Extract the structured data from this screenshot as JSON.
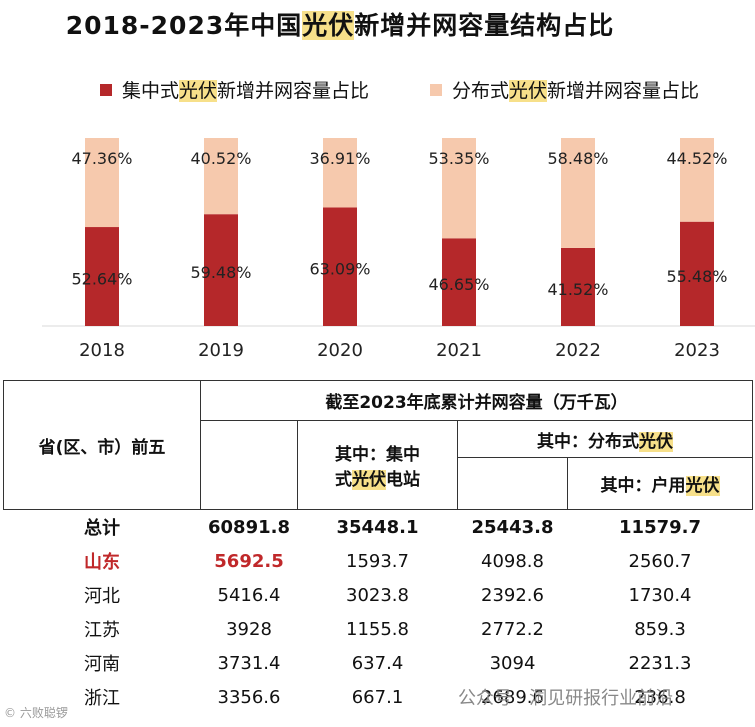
{
  "title": {
    "pre": "2018-2023年中国",
    "hl": "光伏",
    "post": "新增并网容量结构占比"
  },
  "legend": [
    {
      "pre": "集中式",
      "hl": "光伏",
      "post": "新增并网容量占比",
      "color": "#b5282a"
    },
    {
      "pre": "分布式",
      "hl": "光伏",
      "post": "新增并网容量占比",
      "color": "#f6c9ad"
    }
  ],
  "chart_data": {
    "type": "bar",
    "stacked": true,
    "title": "2018-2023年中国光伏新增并网容量结构占比",
    "categories": [
      "2018",
      "2019",
      "2020",
      "2021",
      "2022",
      "2023"
    ],
    "series": [
      {
        "name": "集中式光伏新增并网容量占比",
        "values": [
          52.64,
          59.48,
          63.09,
          46.65,
          41.52,
          55.48
        ],
        "labels": [
          "52.64%",
          "59.48%",
          "63.09%",
          "46.65%",
          "41.52%",
          "55.48%"
        ],
        "color": "#b5282a"
      },
      {
        "name": "分布式光伏新增并网容量占比",
        "values": [
          47.36,
          40.52,
          36.91,
          53.35,
          58.48,
          44.52
        ],
        "labels": [
          "47.36%",
          "40.52%",
          "36.91%",
          "53.35%",
          "58.48%",
          "44.52%"
        ],
        "color": "#f6c9ad"
      }
    ],
    "ylim": [
      0,
      100
    ]
  },
  "table": {
    "header": {
      "province": "省(区、市）前五",
      "cumulative": "截至2023年底累计并网容量（万千瓦）",
      "central": {
        "line1": "其中：集中",
        "pre": "式",
        "hl": "光伏",
        "post": "电站"
      },
      "distributed": {
        "pre": "其中：分布式",
        "hl": "光伏"
      },
      "household": {
        "pre": "其中：户用",
        "hl": "光伏"
      }
    },
    "rows": [
      {
        "name": "总计",
        "total": "60891.8",
        "central": "35448.1",
        "distributed": "25443.8",
        "household": "11579.7"
      },
      {
        "name": "山东",
        "total": "5692.5",
        "central": "1593.7",
        "distributed": "4098.8",
        "household": "2560.7"
      },
      {
        "name": "河北",
        "total": "5416.4",
        "central": "3023.8",
        "distributed": "2392.6",
        "household": "1730.4"
      },
      {
        "name": "江苏",
        "total": "3928",
        "central": "1155.8",
        "distributed": "2772.2",
        "household": "859.3"
      },
      {
        "name": "河南",
        "total": "3731.4",
        "central": "637.4",
        "distributed": "3094",
        "household": "2231.3"
      },
      {
        "name": "浙江",
        "total": "3356.6",
        "central": "667.1",
        "distributed": "2689.6",
        "household": "236.8"
      }
    ]
  },
  "footer": {
    "left": "© 六败聪锣",
    "right": "公众号 · 洞见研报行业前沿"
  }
}
